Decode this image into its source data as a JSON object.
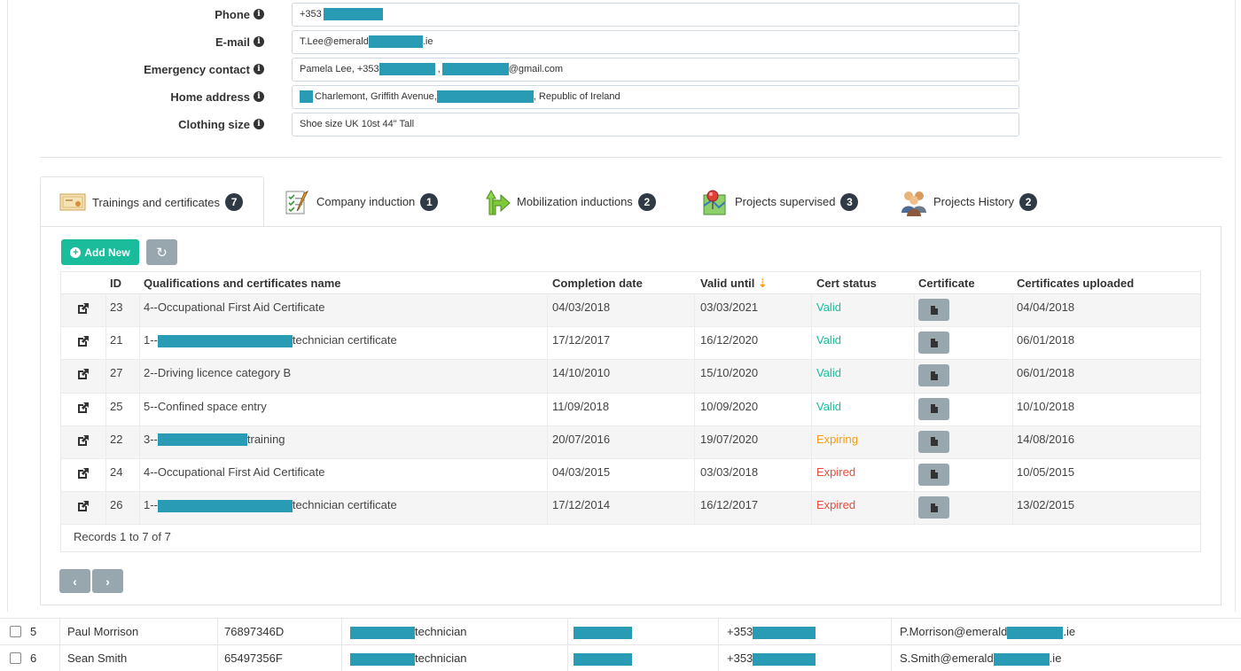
{
  "form": {
    "rows": [
      {
        "label": "Phone",
        "value_prefix": "+353",
        "value_suffix": ""
      },
      {
        "label": "E-mail",
        "value_prefix": "T.Lee@emerald",
        "value_suffix": ".ie"
      },
      {
        "label": "Emergency contact",
        "value_prefix": "Pamela Lee,  +353",
        "value_mid": ",",
        "value_suffix": "@gmail.com"
      },
      {
        "label": "Home address",
        "value_prefix": "",
        "value_mid": "Charlemont, Griffith Avenue,",
        "value_suffix": ", Republic of Ireland"
      },
      {
        "label": "Clothing size",
        "value_prefix": "Shoe size UK 10st 44\"  Tall",
        "value_suffix": ""
      }
    ]
  },
  "tabs": [
    {
      "label": "Trainings and certificates",
      "count": "7"
    },
    {
      "label": "Company induction",
      "count": "1"
    },
    {
      "label": "Mobilization inductions",
      "count": "2"
    },
    {
      "label": "Projects supervised",
      "count": "3"
    },
    {
      "label": "Projects History",
      "count": "2"
    }
  ],
  "toolbar": {
    "add_label": "Add New"
  },
  "table": {
    "headers": {
      "id": "ID",
      "name": "Qualifications and certificates name",
      "completion": "Completion date",
      "valid_until": "Valid until",
      "status": "Cert status",
      "certificate": "Certificate",
      "uploaded": "Certificates uploaded"
    },
    "rows": [
      {
        "id": "23",
        "name_prefix": "4--Occupational First Aid Certificate",
        "name_suffix": "",
        "redact": false,
        "completion": "04/03/2018",
        "valid_until": "03/03/2021",
        "status": "Valid",
        "uploaded": "04/04/2018"
      },
      {
        "id": "21",
        "name_prefix": "1--",
        "name_suffix": "technician certificate",
        "redact": true,
        "completion": "17/12/2017",
        "valid_until": "16/12/2020",
        "status": "Valid",
        "uploaded": "06/01/2018"
      },
      {
        "id": "27",
        "name_prefix": "2--Driving licence category B",
        "name_suffix": "",
        "redact": false,
        "completion": "14/10/2010",
        "valid_until": "15/10/2020",
        "status": "Valid",
        "uploaded": "06/01/2018"
      },
      {
        "id": "25",
        "name_prefix": "5--Confined space entry",
        "name_suffix": "",
        "redact": false,
        "completion": "11/09/2018",
        "valid_until": "10/09/2020",
        "status": "Valid",
        "uploaded": "10/10/2018"
      },
      {
        "id": "22",
        "name_prefix": "3--",
        "name_suffix": "training",
        "redact": true,
        "completion": "20/07/2016",
        "valid_until": "19/07/2020",
        "status": "Expiring",
        "uploaded": "14/08/2016"
      },
      {
        "id": "24",
        "name_prefix": "4--Occupational First Aid Certificate",
        "name_suffix": "",
        "redact": false,
        "completion": "04/03/2015",
        "valid_until": "03/03/2018",
        "status": "Expired",
        "uploaded": "10/05/2015"
      },
      {
        "id": "26",
        "name_prefix": "1--",
        "name_suffix": "technician certificate",
        "redact": true,
        "completion": "17/12/2014",
        "valid_until": "16/12/2017",
        "status": "Expired",
        "uploaded": "13/02/2015"
      }
    ],
    "footer": "Records 1 to 7 of 7"
  },
  "pager": {
    "prev": "‹",
    "next": "›"
  },
  "people": [
    {
      "num": "5",
      "name": "Paul Morrison",
      "code": "76897346D",
      "role": "technician",
      "phone": "+353",
      "email_prefix": "P.Morrison@emerald",
      "email_suffix": ".ie"
    },
    {
      "num": "6",
      "name": "Sean Smith",
      "code": "65497356F",
      "role": "technician",
      "phone": "+353",
      "email_prefix": "S.Smith@emerald",
      "email_suffix": ".ie"
    }
  ],
  "colors": {
    "accent": "#1abc9c",
    "grey_button": "#98a6ad",
    "redaction": "#2a9bb4",
    "expiring": "#f39c12",
    "expired": "#e74c3c"
  }
}
